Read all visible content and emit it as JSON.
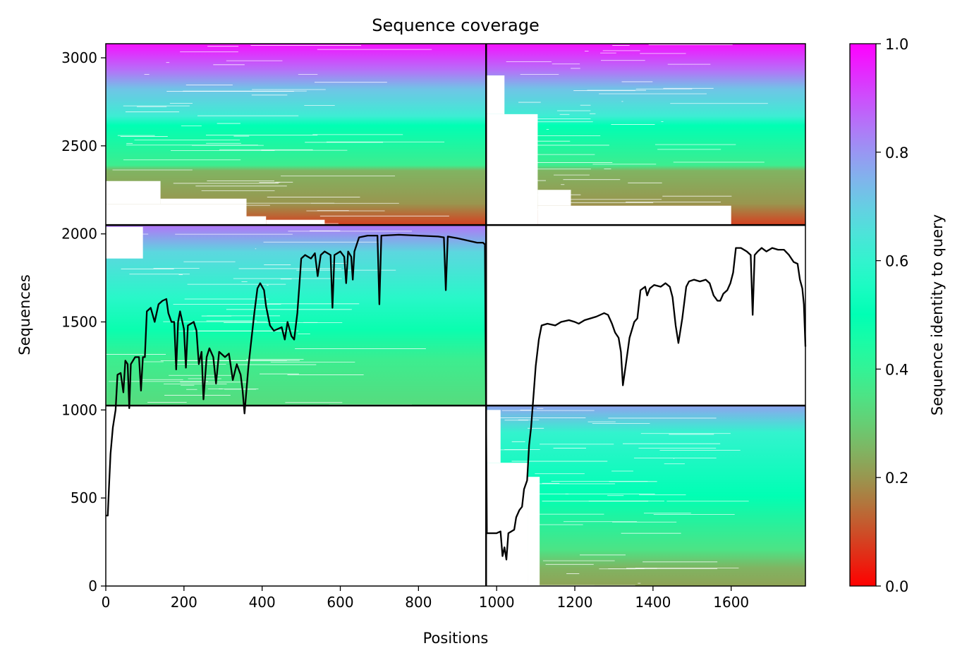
{
  "chart_data": {
    "type": "heatmap",
    "title": "Sequence coverage",
    "xlabel": "Positions",
    "ylabel": "Sequences",
    "xlim": [
      0,
      1790
    ],
    "ylim": [
      0,
      3080
    ],
    "x_ticks": [
      0,
      200,
      400,
      600,
      800,
      1000,
      1200,
      1400,
      1600
    ],
    "y_ticks": [
      0,
      500,
      1000,
      1500,
      2000,
      2500,
      3000
    ],
    "colormap": "rainbow_r",
    "colorbar": {
      "label": "Sequence identity to query",
      "range": [
        0,
        1
      ],
      "ticks": [
        0.0,
        0.2,
        0.4,
        0.6,
        0.8,
        1.0
      ],
      "tick_labels": [
        "0.0",
        "0.2",
        "0.4",
        "0.6",
        "0.8",
        "1.0"
      ]
    },
    "chain_boundaries": {
      "x": [
        973
      ],
      "y": [
        1025,
        2050
      ]
    },
    "blocks": [
      {
        "x0": 0,
        "x1": 973,
        "y0": 2050,
        "y1": 3080,
        "present": true
      },
      {
        "x0": 973,
        "x1": 1790,
        "y0": 2050,
        "y1": 3080,
        "present": true
      },
      {
        "x0": 0,
        "x1": 973,
        "y0": 1025,
        "y1": 2050,
        "present": true
      },
      {
        "x0": 973,
        "x1": 1790,
        "y0": 1025,
        "y1": 2050,
        "present": false
      },
      {
        "x0": 0,
        "x1": 973,
        "y0": 0,
        "y1": 1025,
        "present": false
      },
      {
        "x0": 973,
        "x1": 1790,
        "y0": 0,
        "y1": 1025,
        "present": true
      }
    ],
    "coverage_line": {
      "color": "#000000",
      "points": [
        [
          0,
          400
        ],
        [
          5,
          400
        ],
        [
          8,
          550
        ],
        [
          12,
          750
        ],
        [
          18,
          900
        ],
        [
          25,
          1000
        ],
        [
          30,
          1200
        ],
        [
          38,
          1210
        ],
        [
          45,
          1100
        ],
        [
          50,
          1280
        ],
        [
          56,
          1260
        ],
        [
          60,
          1010
        ],
        [
          64,
          1260
        ],
        [
          75,
          1300
        ],
        [
          85,
          1300
        ],
        [
          90,
          1110
        ],
        [
          95,
          1300
        ],
        [
          100,
          1300
        ],
        [
          105,
          1560
        ],
        [
          115,
          1580
        ],
        [
          125,
          1500
        ],
        [
          135,
          1600
        ],
        [
          145,
          1620
        ],
        [
          155,
          1630
        ],
        [
          160,
          1550
        ],
        [
          168,
          1500
        ],
        [
          175,
          1500
        ],
        [
          180,
          1230
        ],
        [
          185,
          1500
        ],
        [
          190,
          1560
        ],
        [
          200,
          1460
        ],
        [
          205,
          1240
        ],
        [
          210,
          1480
        ],
        [
          225,
          1500
        ],
        [
          232,
          1450
        ],
        [
          238,
          1260
        ],
        [
          245,
          1330
        ],
        [
          250,
          1060
        ],
        [
          258,
          1300
        ],
        [
          265,
          1350
        ],
        [
          275,
          1300
        ],
        [
          282,
          1150
        ],
        [
          290,
          1330
        ],
        [
          305,
          1300
        ],
        [
          315,
          1320
        ],
        [
          325,
          1170
        ],
        [
          335,
          1260
        ],
        [
          345,
          1200
        ],
        [
          350,
          1110
        ],
        [
          355,
          980
        ],
        [
          365,
          1250
        ],
        [
          380,
          1550
        ],
        [
          388,
          1690
        ],
        [
          395,
          1720
        ],
        [
          405,
          1680
        ],
        [
          410,
          1590
        ],
        [
          420,
          1480
        ],
        [
          430,
          1450
        ],
        [
          440,
          1460
        ],
        [
          450,
          1470
        ],
        [
          458,
          1400
        ],
        [
          465,
          1500
        ],
        [
          475,
          1420
        ],
        [
          482,
          1400
        ],
        [
          490,
          1550
        ],
        [
          495,
          1700
        ],
        [
          500,
          1860
        ],
        [
          510,
          1880
        ],
        [
          525,
          1860
        ],
        [
          535,
          1890
        ],
        [
          542,
          1760
        ],
        [
          550,
          1880
        ],
        [
          560,
          1900
        ],
        [
          575,
          1880
        ],
        [
          580,
          1580
        ],
        [
          585,
          1880
        ],
        [
          600,
          1900
        ],
        [
          610,
          1870
        ],
        [
          615,
          1720
        ],
        [
          620,
          1900
        ],
        [
          628,
          1870
        ],
        [
          632,
          1740
        ],
        [
          636,
          1900
        ],
        [
          648,
          1980
        ],
        [
          670,
          1990
        ],
        [
          695,
          1990
        ],
        [
          700,
          1600
        ],
        [
          705,
          1990
        ],
        [
          750,
          1995
        ],
        [
          800,
          1990
        ],
        [
          850,
          1985
        ],
        [
          865,
          1980
        ],
        [
          870,
          1680
        ],
        [
          875,
          1985
        ],
        [
          900,
          1975
        ],
        [
          930,
          1960
        ],
        [
          950,
          1950
        ],
        [
          965,
          1950
        ],
        [
          970,
          1940
        ],
        [
          975,
          300
        ],
        [
          985,
          300
        ],
        [
          1000,
          300
        ],
        [
          1010,
          310
        ],
        [
          1015,
          170
        ],
        [
          1020,
          220
        ],
        [
          1025,
          150
        ],
        [
          1030,
          300
        ],
        [
          1045,
          320
        ],
        [
          1050,
          390
        ],
        [
          1058,
          430
        ],
        [
          1065,
          450
        ],
        [
          1070,
          550
        ],
        [
          1078,
          600
        ],
        [
          1083,
          800
        ],
        [
          1088,
          900
        ],
        [
          1095,
          1100
        ],
        [
          1100,
          1250
        ],
        [
          1108,
          1400
        ],
        [
          1115,
          1480
        ],
        [
          1130,
          1490
        ],
        [
          1150,
          1480
        ],
        [
          1165,
          1500
        ],
        [
          1185,
          1510
        ],
        [
          1200,
          1500
        ],
        [
          1210,
          1490
        ],
        [
          1225,
          1510
        ],
        [
          1240,
          1520
        ],
        [
          1255,
          1530
        ],
        [
          1265,
          1540
        ],
        [
          1275,
          1550
        ],
        [
          1285,
          1540
        ],
        [
          1295,
          1490
        ],
        [
          1303,
          1440
        ],
        [
          1312,
          1410
        ],
        [
          1318,
          1330
        ],
        [
          1323,
          1140
        ],
        [
          1330,
          1250
        ],
        [
          1340,
          1410
        ],
        [
          1352,
          1500
        ],
        [
          1360,
          1520
        ],
        [
          1368,
          1680
        ],
        [
          1380,
          1700
        ],
        [
          1385,
          1650
        ],
        [
          1392,
          1690
        ],
        [
          1403,
          1710
        ],
        [
          1420,
          1700
        ],
        [
          1432,
          1720
        ],
        [
          1443,
          1700
        ],
        [
          1450,
          1640
        ],
        [
          1458,
          1480
        ],
        [
          1465,
          1380
        ],
        [
          1475,
          1520
        ],
        [
          1485,
          1700
        ],
        [
          1492,
          1730
        ],
        [
          1505,
          1740
        ],
        [
          1520,
          1730
        ],
        [
          1535,
          1740
        ],
        [
          1545,
          1720
        ],
        [
          1555,
          1650
        ],
        [
          1565,
          1620
        ],
        [
          1572,
          1620
        ],
        [
          1580,
          1660
        ],
        [
          1590,
          1680
        ],
        [
          1598,
          1720
        ],
        [
          1605,
          1780
        ],
        [
          1612,
          1920
        ],
        [
          1625,
          1920
        ],
        [
          1640,
          1900
        ],
        [
          1650,
          1880
        ],
        [
          1655,
          1540
        ],
        [
          1660,
          1880
        ],
        [
          1668,
          1900
        ],
        [
          1678,
          1920
        ],
        [
          1690,
          1900
        ],
        [
          1705,
          1920
        ],
        [
          1720,
          1910
        ],
        [
          1735,
          1910
        ],
        [
          1748,
          1880
        ],
        [
          1760,
          1840
        ],
        [
          1770,
          1830
        ],
        [
          1776,
          1740
        ],
        [
          1782,
          1690
        ],
        [
          1786,
          1600
        ],
        [
          1790,
          1360
        ]
      ]
    }
  }
}
